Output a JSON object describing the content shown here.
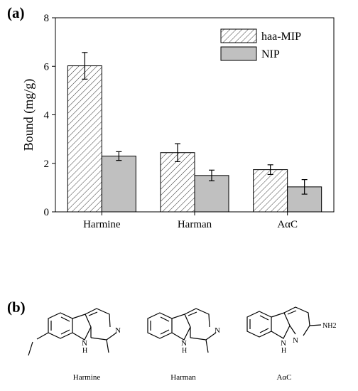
{
  "panel_labels": {
    "a": "(a)",
    "b": "(b)"
  },
  "chart_data": {
    "type": "bar",
    "categories": [
      "Harmine",
      "Harman",
      "AαC"
    ],
    "series": [
      {
        "name": "haa-MIP",
        "values": [
          6.02,
          2.44,
          1.74
        ],
        "errors": [
          0.55,
          0.37,
          0.2
        ],
        "pattern": "hatch"
      },
      {
        "name": "NIP",
        "values": [
          2.3,
          1.5,
          1.03
        ],
        "errors": [
          0.18,
          0.22,
          0.3
        ],
        "color": "#c0c0c0"
      }
    ],
    "title": "",
    "xlabel": "",
    "ylabel": "Bound (mg/g)",
    "ylim": [
      0,
      8
    ],
    "yticks": [
      0,
      2,
      4,
      6,
      8
    ],
    "grid": false,
    "legend_position": "top-right"
  },
  "structures": {
    "harmine": {
      "caption": "Harmine",
      "atoms": {
        "n_pyridine": "N",
        "n_indole": "N",
        "h_indole": "H"
      }
    },
    "harman": {
      "caption": "Harman",
      "atoms": {
        "n_pyridine": "N",
        "n_indole": "N",
        "h_indole": "H"
      }
    },
    "aac": {
      "caption": "AαC",
      "atoms": {
        "n_pyridine": "N",
        "n_indole": "N",
        "h_indole": "H",
        "amine": "NH2"
      }
    }
  }
}
